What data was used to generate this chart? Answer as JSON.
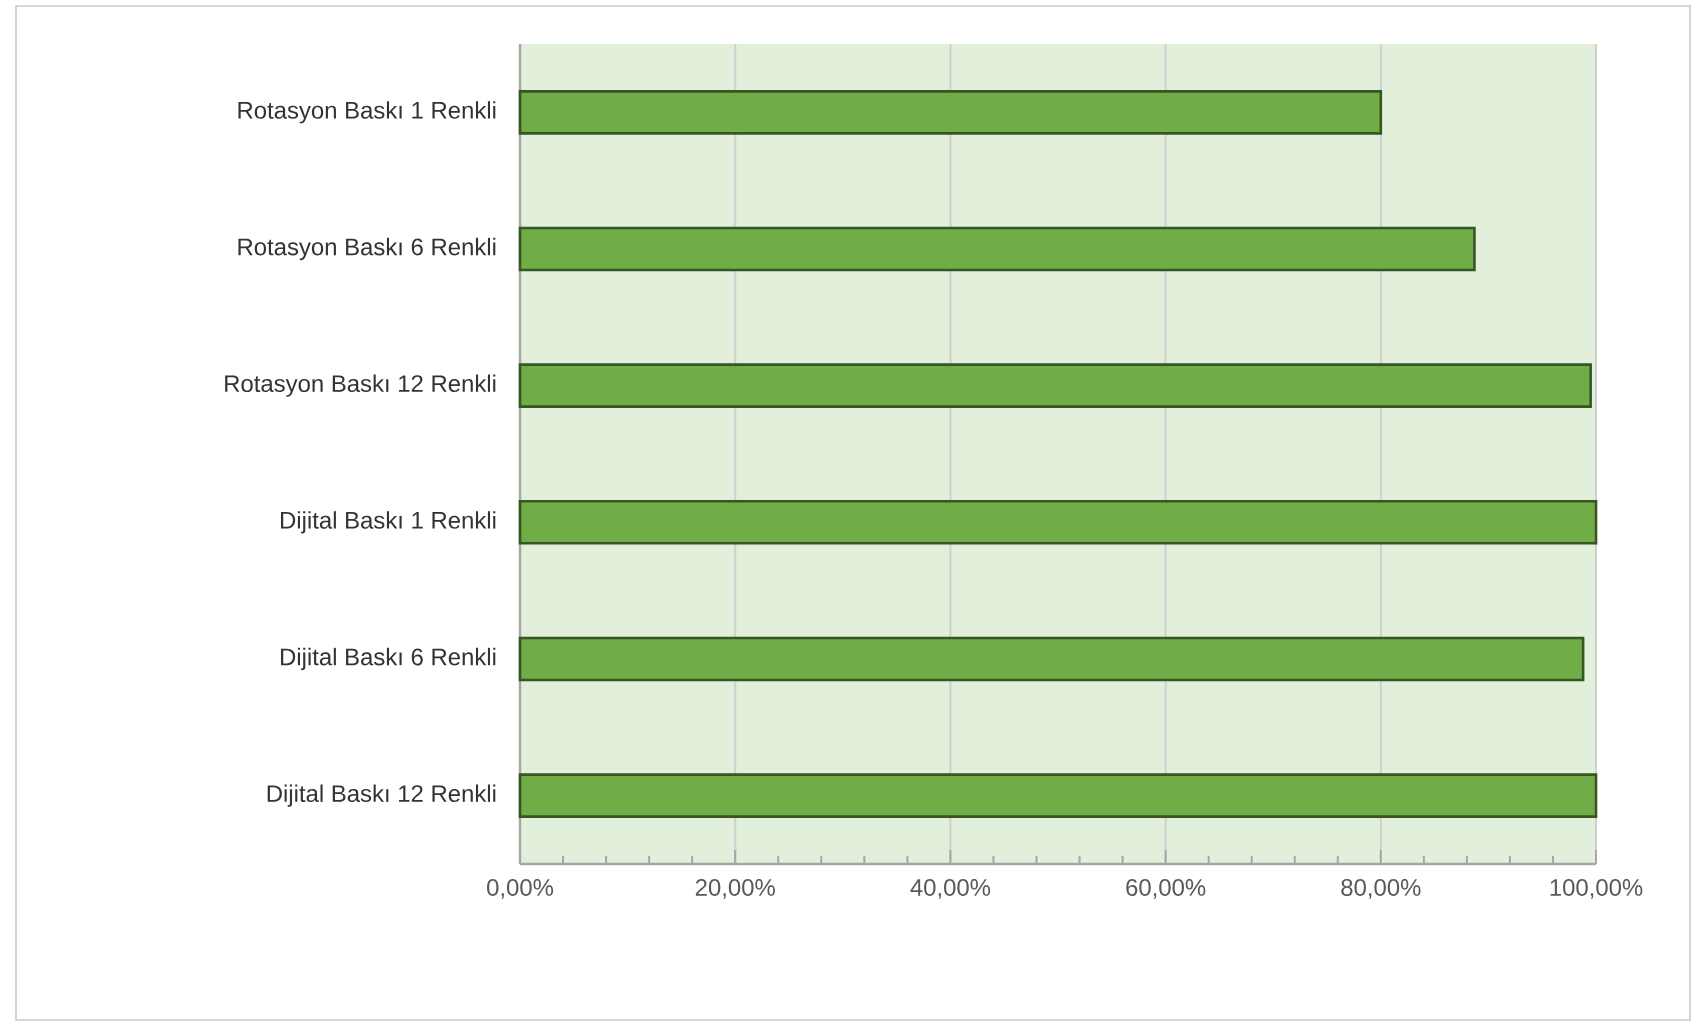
{
  "chart_data": {
    "type": "bar",
    "orientation": "horizontal",
    "categories": [
      "Rotasyon Baskı 1 Renkli",
      "Rotasyon Baskı 6 Renkli",
      "Rotasyon Baskı 12 Renkli",
      "Dijital Baskı 1 Renkli",
      "Dijital Baskı 6 Renkli",
      "Dijital Baskı 12 Renkli"
    ],
    "values": [
      80,
      88.7,
      99.5,
      100,
      98.8,
      100
    ],
    "color": "#70ad47",
    "xlim": [
      0,
      100
    ],
    "xticks": [
      {
        "value": 0,
        "label": "0,00%"
      },
      {
        "value": 4,
        "label": null
      },
      {
        "value": 8,
        "label": null
      },
      {
        "value": 12,
        "label": null
      },
      {
        "value": 16,
        "label": null
      },
      {
        "value": 20,
        "label": "20,00%"
      },
      {
        "value": 24,
        "label": null
      },
      {
        "value": 28,
        "label": null
      },
      {
        "value": 32,
        "label": null
      },
      {
        "value": 36,
        "label": null
      },
      {
        "value": 40,
        "label": "40,00%"
      },
      {
        "value": 44,
        "label": null
      },
      {
        "value": 48,
        "label": null
      },
      {
        "value": 52,
        "label": null
      },
      {
        "value": 56,
        "label": null
      },
      {
        "value": 60,
        "label": "60,00%"
      },
      {
        "value": 64,
        "label": null
      },
      {
        "value": 68,
        "label": null
      },
      {
        "value": 72,
        "label": null
      },
      {
        "value": 76,
        "label": null
      },
      {
        "value": 80,
        "label": "80,00%"
      },
      {
        "value": 84,
        "label": null
      },
      {
        "value": 88,
        "label": null
      },
      {
        "value": 92,
        "label": null
      },
      {
        "value": 96,
        "label": null
      },
      {
        "value": 100,
        "label": "100,00%"
      }
    ],
    "grid": "x"
  }
}
